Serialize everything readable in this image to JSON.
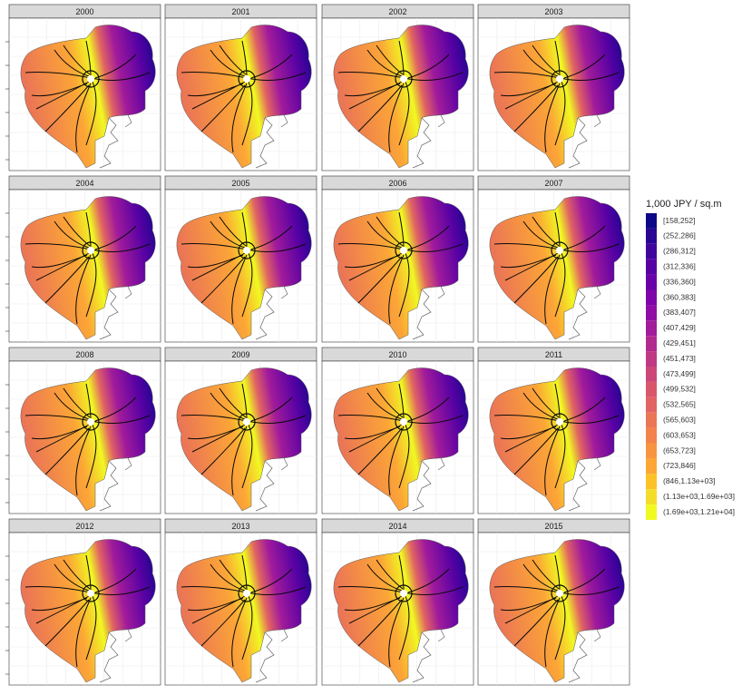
{
  "facets": [
    "2000",
    "2001",
    "2002",
    "2003",
    "2004",
    "2005",
    "2006",
    "2007",
    "2008",
    "2009",
    "2010",
    "2011",
    "2012",
    "2013",
    "2014",
    "2015"
  ],
  "legend": {
    "title": "1,000 JPY / sq.m",
    "items": [
      {
        "label": "[158,252]",
        "color": "#0d0887"
      },
      {
        "label": "(252,286]",
        "color": "#2a0593"
      },
      {
        "label": "(286,312]",
        "color": "#41049d"
      },
      {
        "label": "(312,336]",
        "color": "#5601a4"
      },
      {
        "label": "(336,360]",
        "color": "#6a00a8"
      },
      {
        "label": "(360,383]",
        "color": "#7e03a8"
      },
      {
        "label": "(383,407]",
        "color": "#8f0da4"
      },
      {
        "label": "(407,429]",
        "color": "#a11b9b"
      },
      {
        "label": "(429,451]",
        "color": "#b12a90"
      },
      {
        "label": "(451,473]",
        "color": "#bf3984"
      },
      {
        "label": "(473,499]",
        "color": "#cc4778"
      },
      {
        "label": "(499,532]",
        "color": "#d8576b"
      },
      {
        "label": "(532,565]",
        "color": "#e16462"
      },
      {
        "label": "(565,603]",
        "color": "#eb7655"
      },
      {
        "label": "(603,653]",
        "color": "#f2844b"
      },
      {
        "label": "(653,723]",
        "color": "#f89540"
      },
      {
        "label": "(723,846]",
        "color": "#fca636"
      },
      {
        "label": "(846,1.13e+03]",
        "color": "#fcc228"
      },
      {
        "label": "(1.13e+03,1.69e+03]",
        "color": "#f3dd2a"
      },
      {
        "label": "(1.69e+03,1.21e+04]",
        "color": "#f0f921"
      }
    ]
  }
}
